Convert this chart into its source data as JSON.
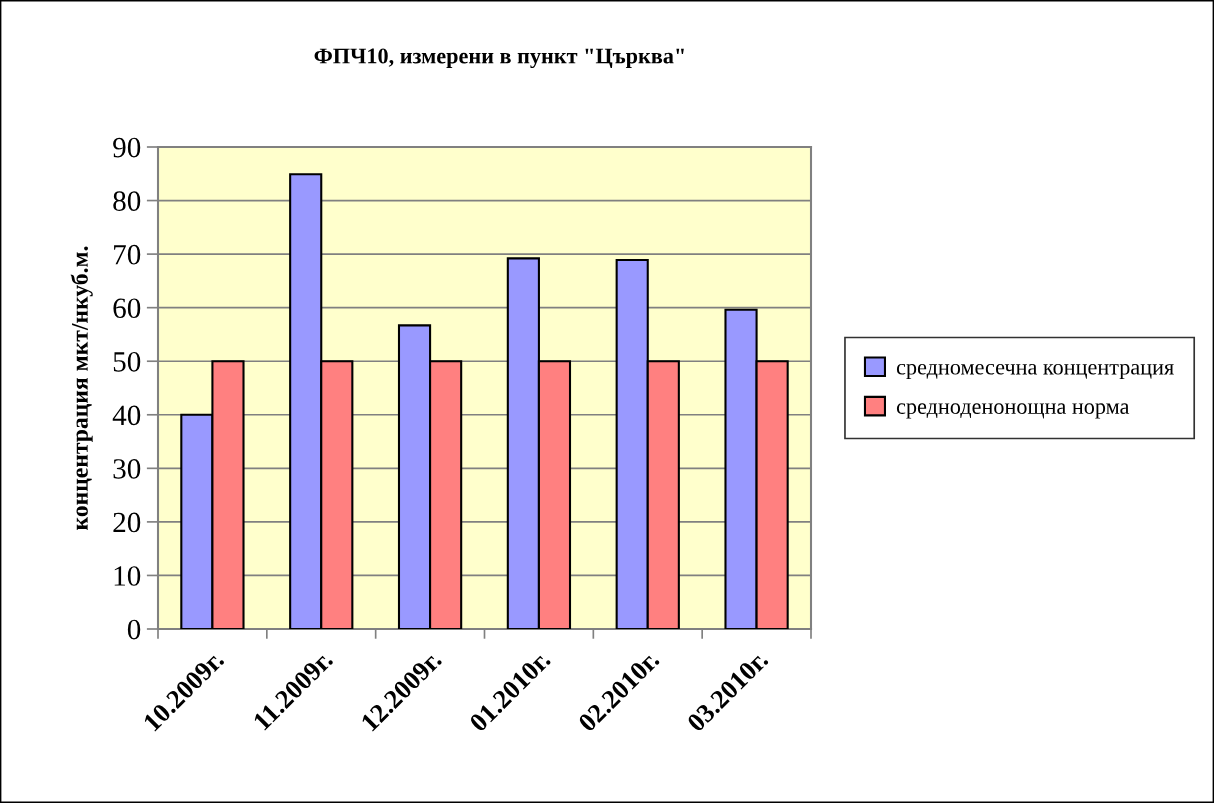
{
  "chart_data": {
    "type": "bar",
    "title": "ФПЧ10, измерени в пункт \"Църква\"",
    "ylabel": "концентрация мкт/нкуб.м.",
    "categories": [
      "10.2009г.",
      "11.2009г.",
      "12.2009г.",
      "01.2010г.",
      "02.2010г.",
      "03.2010г."
    ],
    "series": [
      {
        "name": "средномесечна концентрация",
        "color": "#9999ff",
        "values": [
          40,
          84.9,
          56.7,
          69.2,
          68.9,
          59.6
        ]
      },
      {
        "name": "средноденонощна норма",
        "color": "#ff8080",
        "values": [
          50,
          50,
          50,
          50,
          50,
          50
        ]
      }
    ],
    "ylim": [
      0,
      90
    ],
    "yticks": [
      0,
      10,
      20,
      30,
      40,
      50,
      60,
      70,
      80,
      90
    ],
    "grid": "y",
    "legend": "right"
  }
}
